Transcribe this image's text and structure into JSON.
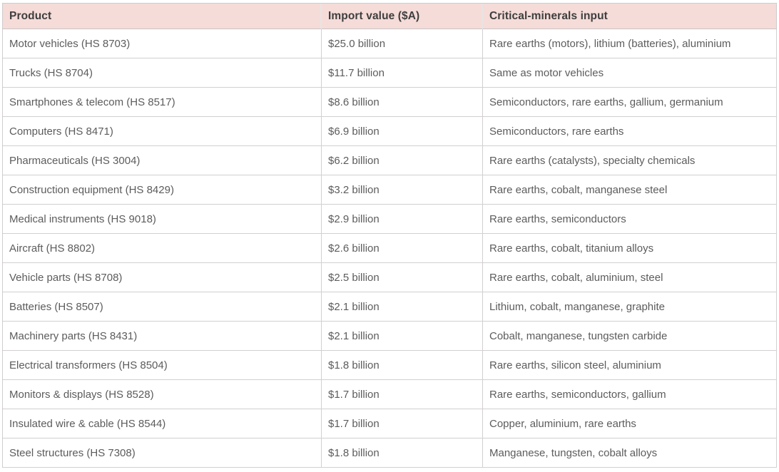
{
  "table": {
    "columns": [
      {
        "label": "Product"
      },
      {
        "label": "Import value ($A)"
      },
      {
        "label": "Critical-minerals input"
      }
    ],
    "rows": [
      {
        "product": "Motor vehicles (HS 8703)",
        "import_value": "$25.0 billion",
        "minerals": "Rare earths (motors), lithium (batteries), aluminium"
      },
      {
        "product": "Trucks (HS 8704)",
        "import_value": "$11.7 billion",
        "minerals": "Same as motor vehicles"
      },
      {
        "product": "Smartphones & telecom (HS 8517)",
        "import_value": "$8.6 billion",
        "minerals": "Semiconductors, rare earths, gallium, germanium"
      },
      {
        "product": "Computers (HS 8471)",
        "import_value": "$6.9 billion",
        "minerals": "Semiconductors, rare earths"
      },
      {
        "product": "Pharmaceuticals (HS 3004)",
        "import_value": "$6.2 billion",
        "minerals": "Rare earths (catalysts), specialty chemicals"
      },
      {
        "product": "Construction equipment (HS 8429)",
        "import_value": "$3.2 billion",
        "minerals": "Rare earths, cobalt, manganese steel"
      },
      {
        "product": "Medical instruments (HS 9018)",
        "import_value": "$2.9 billion",
        "minerals": "Rare earths, semiconductors"
      },
      {
        "product": "Aircraft (HS 8802)",
        "import_value": "$2.6 billion",
        "minerals": "Rare earths, cobalt, titanium alloys"
      },
      {
        "product": "Vehicle parts (HS 8708)",
        "import_value": "$2.5 billion",
        "minerals": "Rare earths, cobalt, aluminium, steel"
      },
      {
        "product": "Batteries (HS 8507)",
        "import_value": "$2.1 billion",
        "minerals": "Lithium, cobalt, manganese, graphite"
      },
      {
        "product": "Machinery parts (HS 8431)",
        "import_value": "$2.1 billion",
        "minerals": "Cobalt, manganese, tungsten carbide"
      },
      {
        "product": "Electrical transformers (HS 8504)",
        "import_value": "$1.8 billion",
        "minerals": "Rare earths, silicon steel, aluminium"
      },
      {
        "product": "Monitors & displays (HS 8528)",
        "import_value": "$1.7 billion",
        "minerals": "Rare earths, semiconductors, gallium"
      },
      {
        "product": "Insulated wire & cable (HS 8544)",
        "import_value": "$1.7 billion",
        "minerals": "Copper, aluminium, rare earths"
      },
      {
        "product": "Steel structures (HS 7308)",
        "import_value": "$1.8 billion",
        "minerals": "Manganese, tungsten, cobalt alloys"
      }
    ]
  },
  "colors": {
    "header_bg": "#f5dcd8",
    "header_text": "#3e3e3e",
    "body_text": "#5c5c5c",
    "border": "#cfcccc"
  }
}
